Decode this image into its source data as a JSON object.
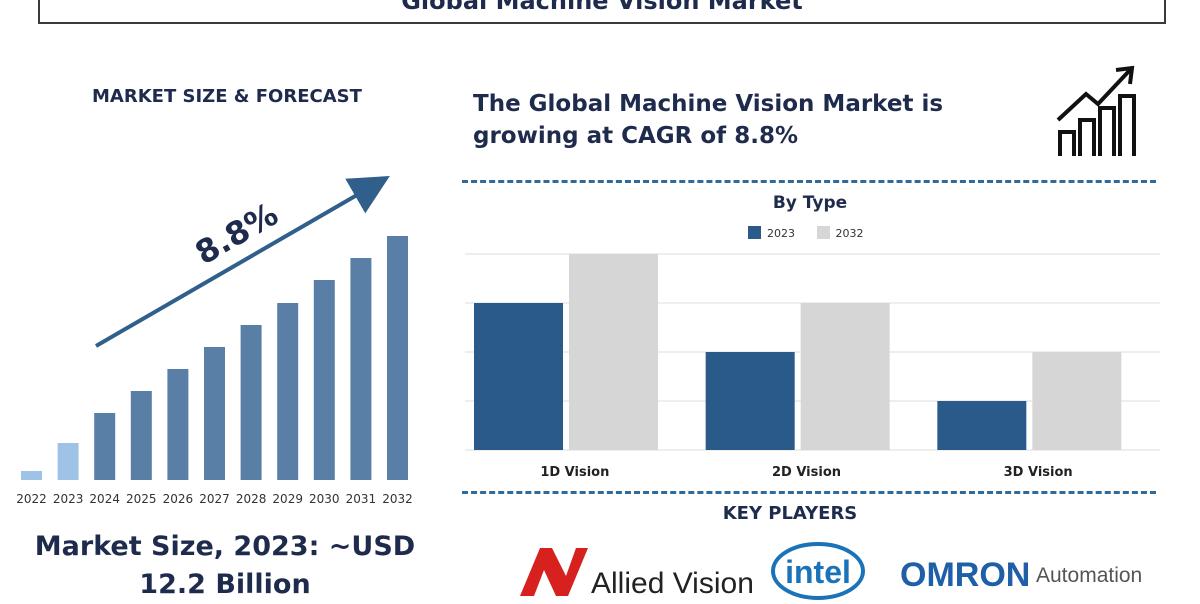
{
  "header": {
    "title": "Global Machine Vision Market"
  },
  "left": {
    "heading": "MARKET SIZE & FORECAST",
    "growth_label": "8.8%"
  },
  "right": {
    "cagr_line1": "The Global Machine Vision Market is",
    "cagr_line2": "growing at CAGR of 8.8%"
  },
  "chart_data": [
    {
      "type": "bar",
      "categories": [
        "2022",
        "2023",
        "2024",
        "2025",
        "2026",
        "2027",
        "2028",
        "2029",
        "2030",
        "2031",
        "2032"
      ],
      "values": [
        9,
        37,
        67,
        89,
        111,
        133,
        155,
        177,
        200,
        222,
        244
      ],
      "colors_by_index": [
        "#9ec3e6",
        "#9ec3e6",
        "#5a7fa6",
        "#5a7fa6",
        "#5a7fa6",
        "#5a7fa6",
        "#5a7fa6",
        "#5a7fa6",
        "#5a7fa6",
        "#5a7fa6",
        "#5a7fa6"
      ],
      "annotation": "8.8%",
      "grid": false,
      "ylim": [
        0,
        270
      ]
    },
    {
      "type": "bar",
      "title": "By Type",
      "categories": [
        "1D Vision",
        "2D Vision",
        "3D Vision"
      ],
      "series": [
        {
          "name": "2023",
          "values": [
            3,
            2,
            1
          ],
          "color": "#295a8a"
        },
        {
          "name": "2032",
          "values": [
            4,
            3,
            2
          ],
          "color": "#d6d6d6"
        }
      ],
      "ylim": [
        0,
        4
      ],
      "grid": true,
      "legend_position": "top"
    }
  ],
  "key_players": {
    "heading": "KEY PLAYERS",
    "logos": [
      {
        "name": "Allied Vision",
        "color": "#d6211f"
      },
      {
        "name": "intel",
        "color": "#1a73b8"
      },
      {
        "name": "OMRON",
        "suffix": "Automation",
        "color": "#1f5fa8"
      }
    ]
  },
  "footer": {
    "market_size_line1": "Market Size, 2023: ~USD",
    "market_size_line2": "12.2 Billion"
  },
  "icons": [
    "growth-chart-icon"
  ]
}
